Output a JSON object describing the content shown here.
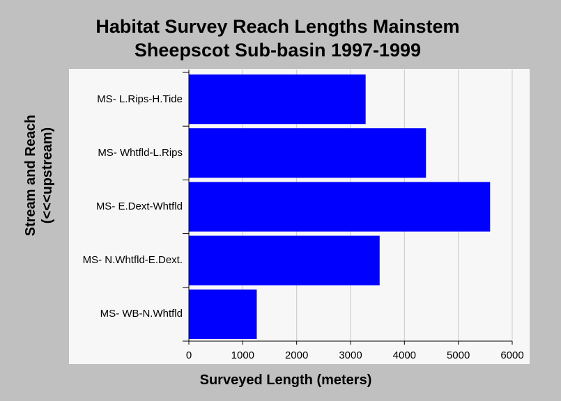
{
  "chart_data": {
    "type": "bar",
    "orientation": "horizontal",
    "title_line1": "Habitat Survey Reach Lengths Mainstem",
    "title_line2": "Sheepscot Sub-basin 1997-1999",
    "xlabel": "Surveyed Length (meters)",
    "ylabel_line1": "Stream and Reach",
    "ylabel_line2": "(<<<upstream)",
    "categories": [
      "MS- L.Rips-H.Tide",
      "MS- Whtfld-L.Rips",
      "MS- E.Dext-Whtfld",
      "MS- N.Whtfld-E.Dext.",
      "MS- WB-N.Whtfld"
    ],
    "values": [
      3280,
      4400,
      5590,
      3540,
      1260
    ],
    "xlim": [
      0,
      6000
    ],
    "xticks": [
      "0",
      "1000",
      "2000",
      "3000",
      "4000",
      "5000",
      "6000"
    ],
    "grid": "vertical",
    "bar_color": "#0000ff"
  }
}
